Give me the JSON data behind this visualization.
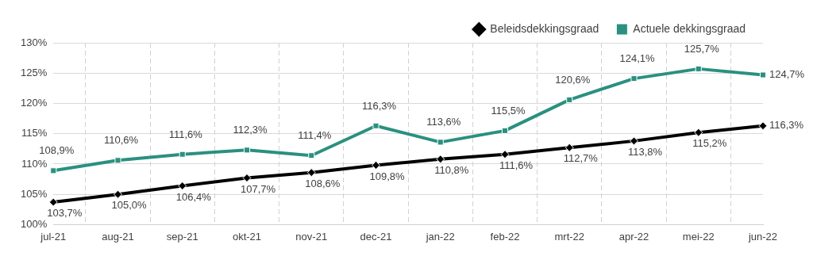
{
  "chart_data": {
    "type": "line",
    "categories": [
      "jul-21",
      "aug-21",
      "sep-21",
      "okt-21",
      "nov-21",
      "dec-21",
      "jan-22",
      "feb-22",
      "mrt-22",
      "apr-22",
      "mei-22",
      "jun-22"
    ],
    "series": [
      {
        "name": "Beleidsdekkingsgraad",
        "color": "#000000",
        "marker": "diamond",
        "values": [
          103.7,
          105.0,
          106.4,
          107.7,
          108.6,
          109.8,
          110.8,
          111.6,
          112.7,
          113.8,
          115.2,
          116.3
        ],
        "value_labels": [
          "103,7%",
          "105,0%",
          "106,4%",
          "107,7%",
          "108,6%",
          "109,8%",
          "110,8%",
          "111,6%",
          "112,7%",
          "113,8%",
          "115,2%",
          "116,3%"
        ]
      },
      {
        "name": "Actuele dekkingsgraad",
        "color": "#2a9080",
        "marker": "square",
        "values": [
          108.9,
          110.6,
          111.6,
          112.3,
          111.4,
          116.3,
          113.6,
          115.5,
          120.6,
          124.1,
          125.7,
          124.7
        ],
        "value_labels": [
          "108,9%",
          "110,6%",
          "111,6%",
          "112,3%",
          "111,4%",
          "116,3%",
          "113,6%",
          "115,5%",
          "120,6%",
          "124,1%",
          "125,7%",
          "124,7%"
        ]
      }
    ],
    "ylim": [
      100,
      130
    ],
    "yticks": [
      {
        "value": 100,
        "label": "100%"
      },
      {
        "value": 105,
        "label": "105%"
      },
      {
        "value": 110,
        "label": "110%"
      },
      {
        "value": 115,
        "label": "115%"
      },
      {
        "value": 120,
        "label": "120%"
      },
      {
        "value": 125,
        "label": "125%"
      },
      {
        "value": 130,
        "label": "130%"
      }
    ],
    "grid": true,
    "legend": "top right",
    "line_style": "solid"
  }
}
